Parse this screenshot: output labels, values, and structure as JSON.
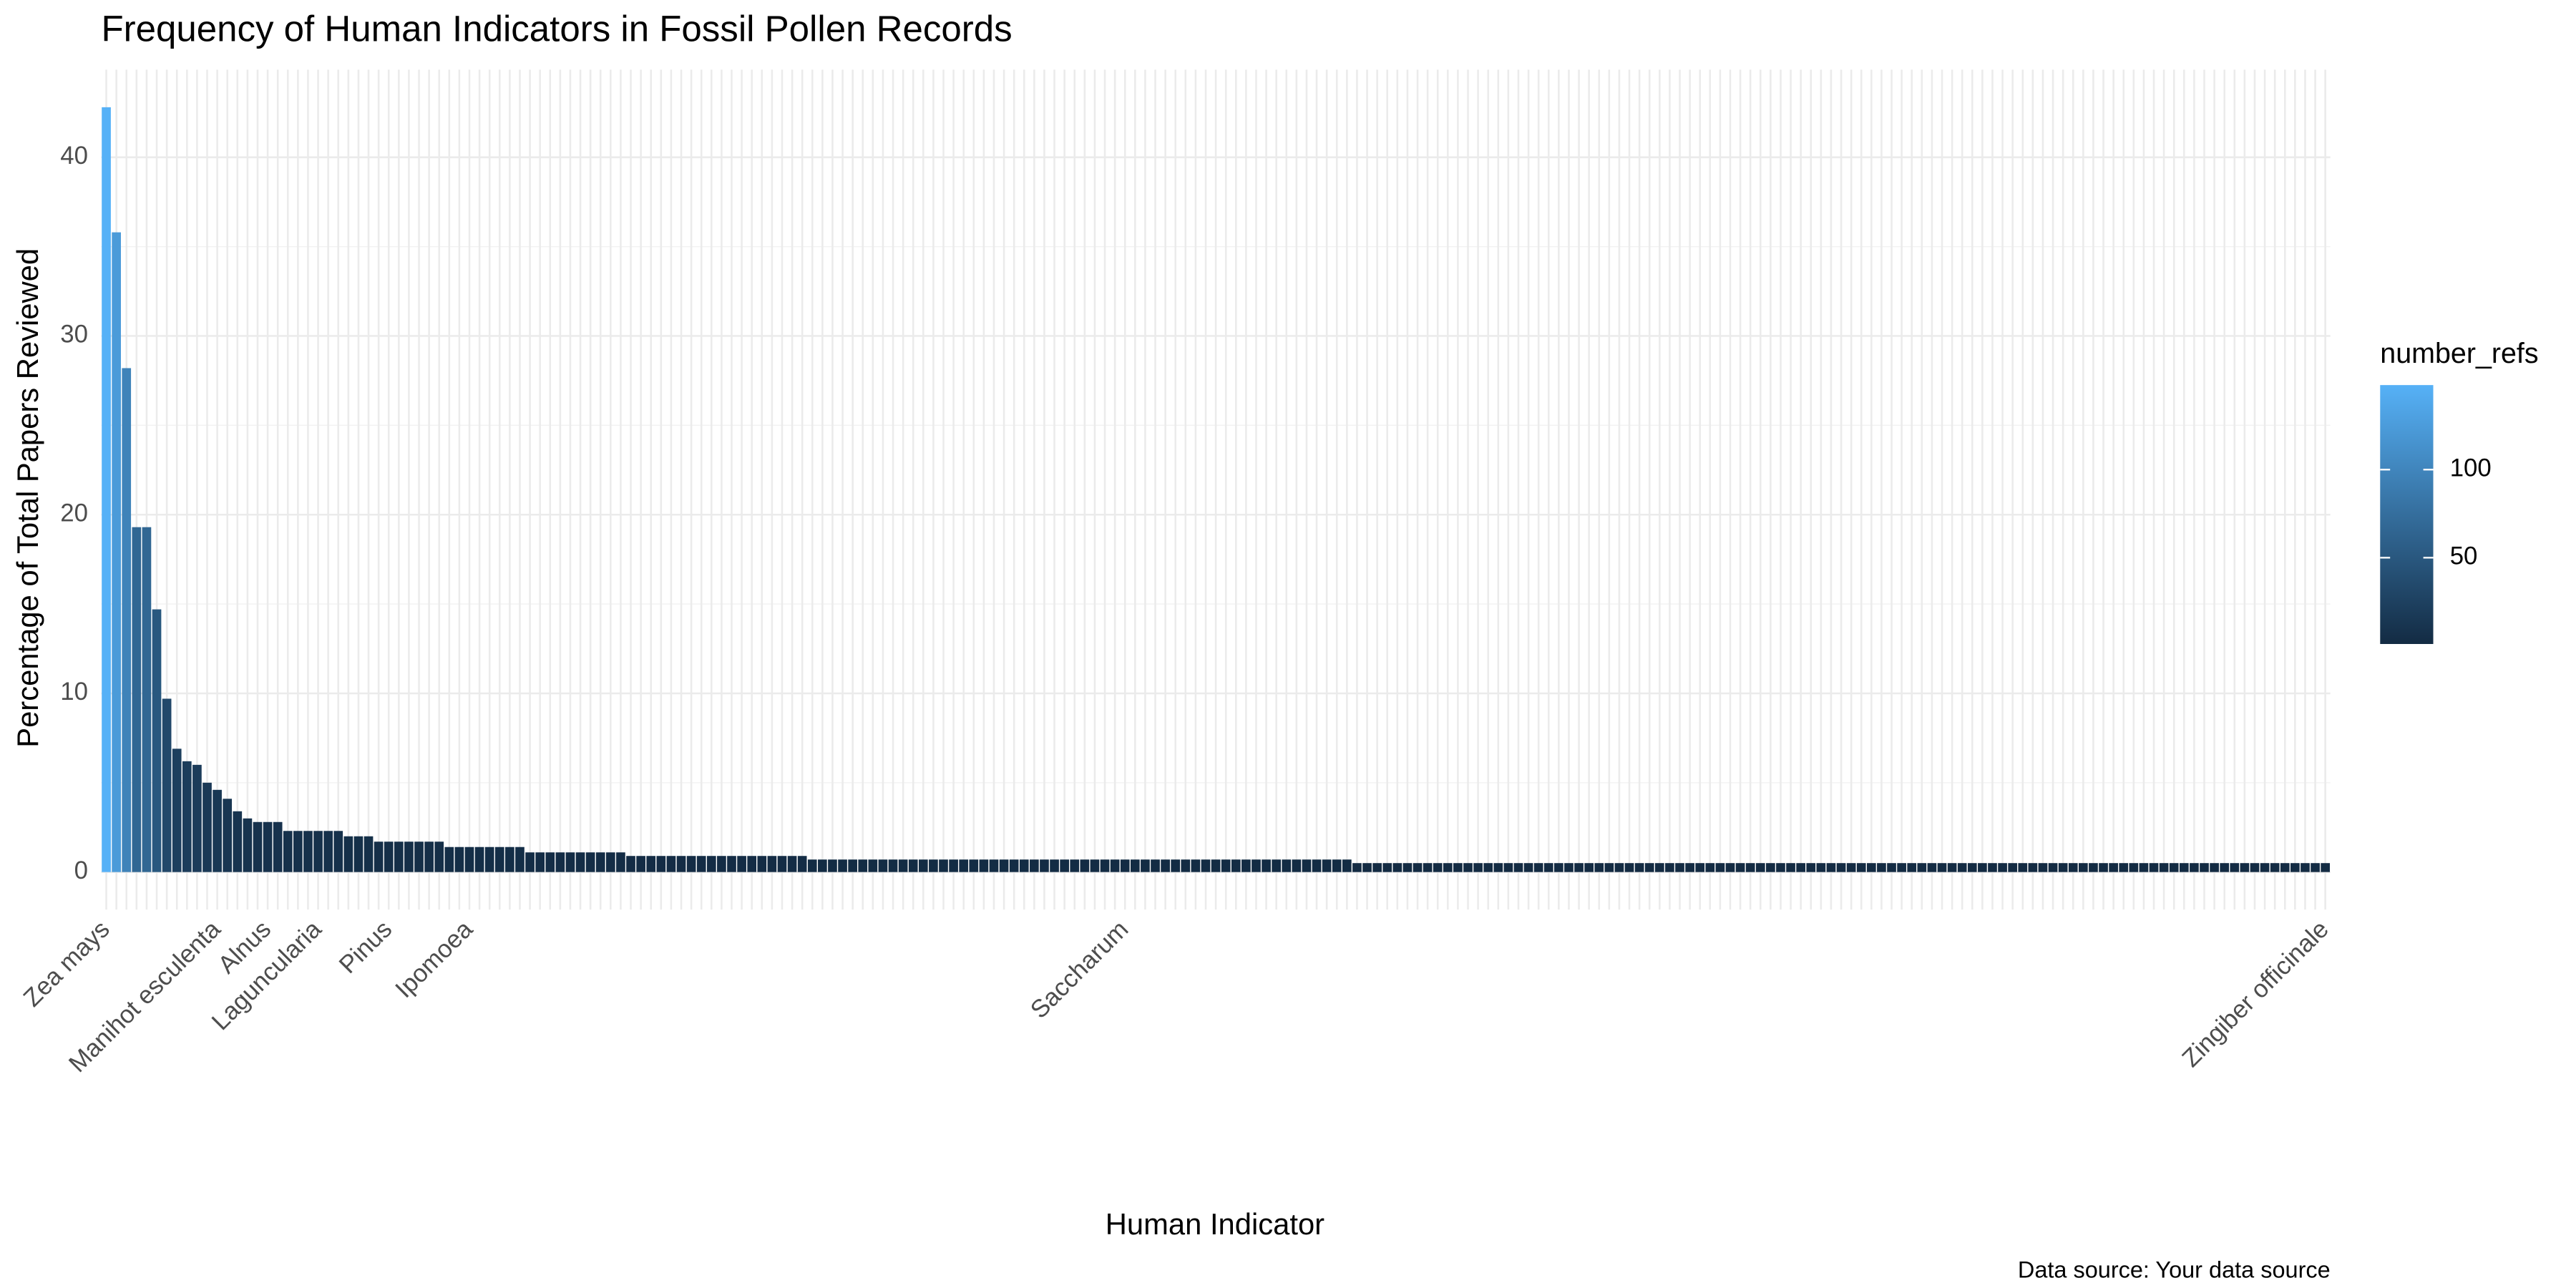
{
  "chart_data": {
    "type": "bar",
    "title": "Frequency of Human Indicators in Fossil Pollen Records",
    "x_label": "Human Indicator",
    "y_label": "Percentage of Total Papers Reviewed",
    "caption": "Data source: Your data source",
    "categories": [
      "Zea mays",
      null,
      null,
      null,
      null,
      null,
      null,
      null,
      null,
      null,
      null,
      "Manihot esculenta",
      null,
      null,
      null,
      null,
      "Alnus",
      null,
      null,
      null,
      null,
      "Laguncularia",
      null,
      null,
      null,
      null,
      null,
      null,
      "Pinus",
      null,
      null,
      null,
      null,
      null,
      null,
      null,
      "Ipomoea",
      null,
      null,
      null,
      null,
      null,
      null,
      null,
      null,
      null,
      null,
      null,
      null,
      null,
      null,
      null,
      null,
      null,
      null,
      null,
      null,
      null,
      null,
      null,
      null,
      null,
      null,
      null,
      null,
      null,
      null,
      null,
      null,
      null,
      null,
      null,
      null,
      null,
      null,
      null,
      null,
      null,
      null,
      null,
      null,
      null,
      null,
      null,
      null,
      null,
      null,
      null,
      null,
      null,
      null,
      null,
      null,
      null,
      null,
      null,
      null,
      null,
      null,
      null,
      null,
      "Saccharum",
      null,
      null,
      null,
      null,
      null,
      null,
      null,
      null,
      null,
      null,
      null,
      null,
      null,
      null,
      null,
      null,
      null,
      null,
      null,
      null,
      null,
      null,
      null,
      null,
      null,
      null,
      null,
      null,
      null,
      null,
      null,
      null,
      null,
      null,
      null,
      null,
      null,
      null,
      null,
      null,
      null,
      null,
      null,
      null,
      null,
      null,
      null,
      null,
      null,
      null,
      null,
      null,
      null,
      null,
      null,
      null,
      null,
      null,
      null,
      null,
      null,
      null,
      null,
      null,
      null,
      null,
      null,
      null,
      null,
      null,
      null,
      null,
      null,
      null,
      null,
      null,
      null,
      null,
      null,
      null,
      null,
      null,
      null,
      null,
      null,
      null,
      null,
      null,
      null,
      null,
      null,
      null,
      null,
      null,
      null,
      null,
      null,
      null,
      null,
      null,
      null,
      null,
      null,
      null,
      null,
      null,
      null,
      null,
      null,
      null,
      null,
      null,
      null,
      null,
      null,
      null,
      null,
      null,
      "Zingiber officinale"
    ],
    "values": [
      42.8,
      35.8,
      28.2,
      19.3,
      19.3,
      14.7,
      9.7,
      6.9,
      6.2,
      6.0,
      5.0,
      4.6,
      4.1,
      3.4,
      3.0,
      2.8,
      2.8,
      2.8,
      2.3,
      2.3,
      2.3,
      2.3,
      2.3,
      2.3,
      2.0,
      2.0,
      2.0,
      1.7,
      1.7,
      1.7,
      1.7,
      1.7,
      1.7,
      1.7,
      1.4,
      1.4,
      1.4,
      1.4,
      1.4,
      1.4,
      1.4,
      1.4,
      1.1,
      1.1,
      1.1,
      1.1,
      1.1,
      1.1,
      1.1,
      1.1,
      1.1,
      1.1,
      0.9,
      0.9,
      0.9,
      0.9,
      0.9,
      0.9,
      0.9,
      0.9,
      0.9,
      0.9,
      0.9,
      0.9,
      0.9,
      0.9,
      0.9,
      0.9,
      0.9,
      0.9,
      0.7,
      0.7,
      0.7,
      0.7,
      0.7,
      0.7,
      0.7,
      0.7,
      0.7,
      0.7,
      0.7,
      0.7,
      0.7,
      0.7,
      0.7,
      0.7,
      0.7,
      0.7,
      0.7,
      0.7,
      0.7,
      0.7,
      0.7,
      0.7,
      0.7,
      0.7,
      0.7,
      0.7,
      0.7,
      0.7,
      0.7,
      0.7,
      0.7,
      0.7,
      0.7,
      0.7,
      0.7,
      0.7,
      0.7,
      0.7,
      0.7,
      0.7,
      0.7,
      0.7,
      0.7,
      0.7,
      0.7,
      0.7,
      0.7,
      0.7,
      0.7,
      0.7,
      0.7,
      0.7,
      0.5,
      0.5,
      0.5,
      0.5,
      0.5,
      0.5,
      0.5,
      0.5,
      0.5,
      0.5,
      0.5,
      0.5,
      0.5,
      0.5,
      0.5,
      0.5,
      0.5,
      0.5,
      0.5,
      0.5,
      0.5,
      0.5,
      0.5,
      0.5,
      0.5,
      0.5,
      0.5,
      0.5,
      0.5,
      0.5,
      0.5,
      0.5,
      0.5,
      0.5,
      0.5,
      0.5,
      0.5,
      0.5,
      0.5,
      0.5,
      0.5,
      0.5,
      0.5,
      0.5,
      0.5,
      0.5,
      0.5,
      0.5,
      0.5,
      0.5,
      0.5,
      0.5,
      0.5,
      0.5,
      0.5,
      0.5,
      0.5,
      0.5,
      0.5,
      0.5,
      0.5,
      0.5,
      0.5,
      0.5,
      0.5,
      0.5,
      0.5,
      0.5,
      0.5,
      0.5,
      0.5,
      0.5,
      0.5,
      0.5,
      0.5,
      0.5,
      0.5,
      0.5,
      0.5,
      0.5,
      0.5,
      0.5,
      0.5,
      0.5,
      0.5,
      0.5,
      0.5,
      0.5,
      0.5,
      0.5,
      0.5,
      0.5,
      0.5,
      0.5,
      0.5,
      0.5,
      0.5
    ],
    "ylim": [
      -2.1,
      44.9
    ],
    "yticks": [
      0,
      10,
      20,
      30,
      40
    ],
    "grid": true,
    "legend": {
      "title": "number_refs",
      "lim": [
        1,
        148
      ],
      "ticks": [
        50,
        100
      ],
      "colors": [
        "#132B43",
        "#56B1F7"
      ]
    }
  }
}
